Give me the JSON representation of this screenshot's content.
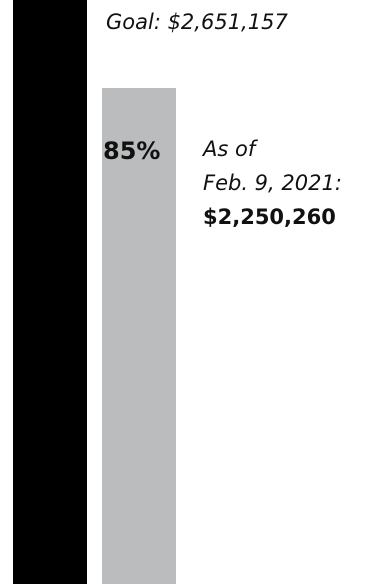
{
  "goal": {
    "label": "Goal: $2,651,157",
    "bar_color": "#000000"
  },
  "progress": {
    "percent_label": "85%",
    "fraction": 0.85,
    "fill_color": "#bbbcbe"
  },
  "status": {
    "line1": "As of",
    "line2": "Feb. 9, 2021:",
    "amount": "$2,250,260"
  }
}
